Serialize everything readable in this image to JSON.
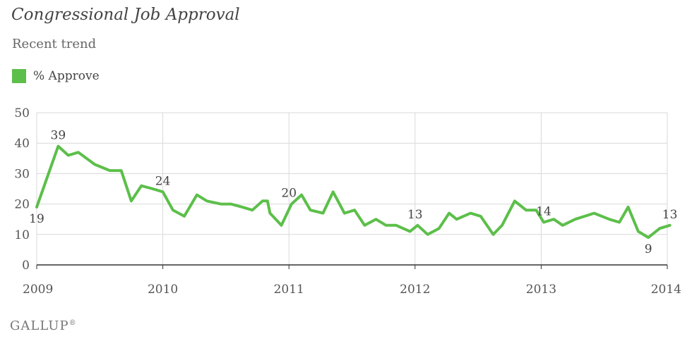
{
  "title": "Congressional Job Approval",
  "subtitle": "Recent trend",
  "footer": "GALLUP",
  "footer_mark": "®",
  "colors": {
    "series": "#5cbf4a",
    "grid": "#d9d9d9",
    "axis": "#333333"
  },
  "chart_data": {
    "type": "line",
    "title": "Congressional Job Approval",
    "subtitle": "Recent trend",
    "xlabel": "",
    "ylabel": "",
    "ylim": [
      0,
      50
    ],
    "xlim": [
      2009,
      2014
    ],
    "yticks": [
      0,
      10,
      20,
      30,
      40,
      50
    ],
    "xticks": [
      "2009",
      "2010",
      "2011",
      "2012",
      "2013",
      "2014"
    ],
    "grid": true,
    "legend_position": "top-left",
    "series": [
      {
        "name": "% Approve",
        "color": "#5cbf4a",
        "points": [
          [
            2009.0,
            19
          ],
          [
            2009.17,
            39
          ],
          [
            2009.25,
            36
          ],
          [
            2009.33,
            37
          ],
          [
            2009.46,
            33
          ],
          [
            2009.58,
            31
          ],
          [
            2009.67,
            31
          ],
          [
            2009.75,
            21
          ],
          [
            2009.83,
            26
          ],
          [
            2009.92,
            25
          ],
          [
            2010.0,
            24
          ],
          [
            2010.08,
            18
          ],
          [
            2010.17,
            16
          ],
          [
            2010.27,
            23
          ],
          [
            2010.35,
            21
          ],
          [
            2010.46,
            20
          ],
          [
            2010.54,
            20
          ],
          [
            2010.63,
            19
          ],
          [
            2010.71,
            18
          ],
          [
            2010.79,
            21
          ],
          [
            2010.83,
            21
          ],
          [
            2010.85,
            17
          ],
          [
            2010.94,
            13
          ],
          [
            2011.02,
            20
          ],
          [
            2011.1,
            23
          ],
          [
            2011.17,
            18
          ],
          [
            2011.27,
            17
          ],
          [
            2011.35,
            24
          ],
          [
            2011.44,
            17
          ],
          [
            2011.52,
            18
          ],
          [
            2011.6,
            13
          ],
          [
            2011.69,
            15
          ],
          [
            2011.77,
            13
          ],
          [
            2011.85,
            13
          ],
          [
            2011.96,
            11
          ],
          [
            2012.02,
            13
          ],
          [
            2012.1,
            10
          ],
          [
            2012.19,
            12
          ],
          [
            2012.27,
            17
          ],
          [
            2012.33,
            15
          ],
          [
            2012.44,
            17
          ],
          [
            2012.52,
            16
          ],
          [
            2012.62,
            10
          ],
          [
            2012.69,
            13
          ],
          [
            2012.79,
            21
          ],
          [
            2012.88,
            18
          ],
          [
            2012.96,
            18
          ],
          [
            2013.02,
            14
          ],
          [
            2013.1,
            15
          ],
          [
            2013.17,
            13
          ],
          [
            2013.27,
            15
          ],
          [
            2013.42,
            17
          ],
          [
            2013.54,
            15
          ],
          [
            2013.62,
            14
          ],
          [
            2013.69,
            19
          ],
          [
            2013.77,
            11
          ],
          [
            2013.85,
            9
          ],
          [
            2013.94,
            12
          ],
          [
            2014.02,
            13
          ]
        ]
      }
    ],
    "annotations": [
      {
        "x": 2009.0,
        "y": 19,
        "text": "19",
        "position": "below"
      },
      {
        "x": 2009.17,
        "y": 39,
        "text": "39",
        "position": "above"
      },
      {
        "x": 2010.0,
        "y": 24,
        "text": "24",
        "position": "above"
      },
      {
        "x": 2011.0,
        "y": 20,
        "text": "20",
        "position": "above"
      },
      {
        "x": 2012.0,
        "y": 13,
        "text": "13",
        "position": "above"
      },
      {
        "x": 2013.02,
        "y": 14,
        "text": "14",
        "position": "above"
      },
      {
        "x": 2013.85,
        "y": 9,
        "text": "9",
        "position": "below"
      },
      {
        "x": 2014.02,
        "y": 13,
        "text": "13",
        "position": "above"
      }
    ]
  }
}
